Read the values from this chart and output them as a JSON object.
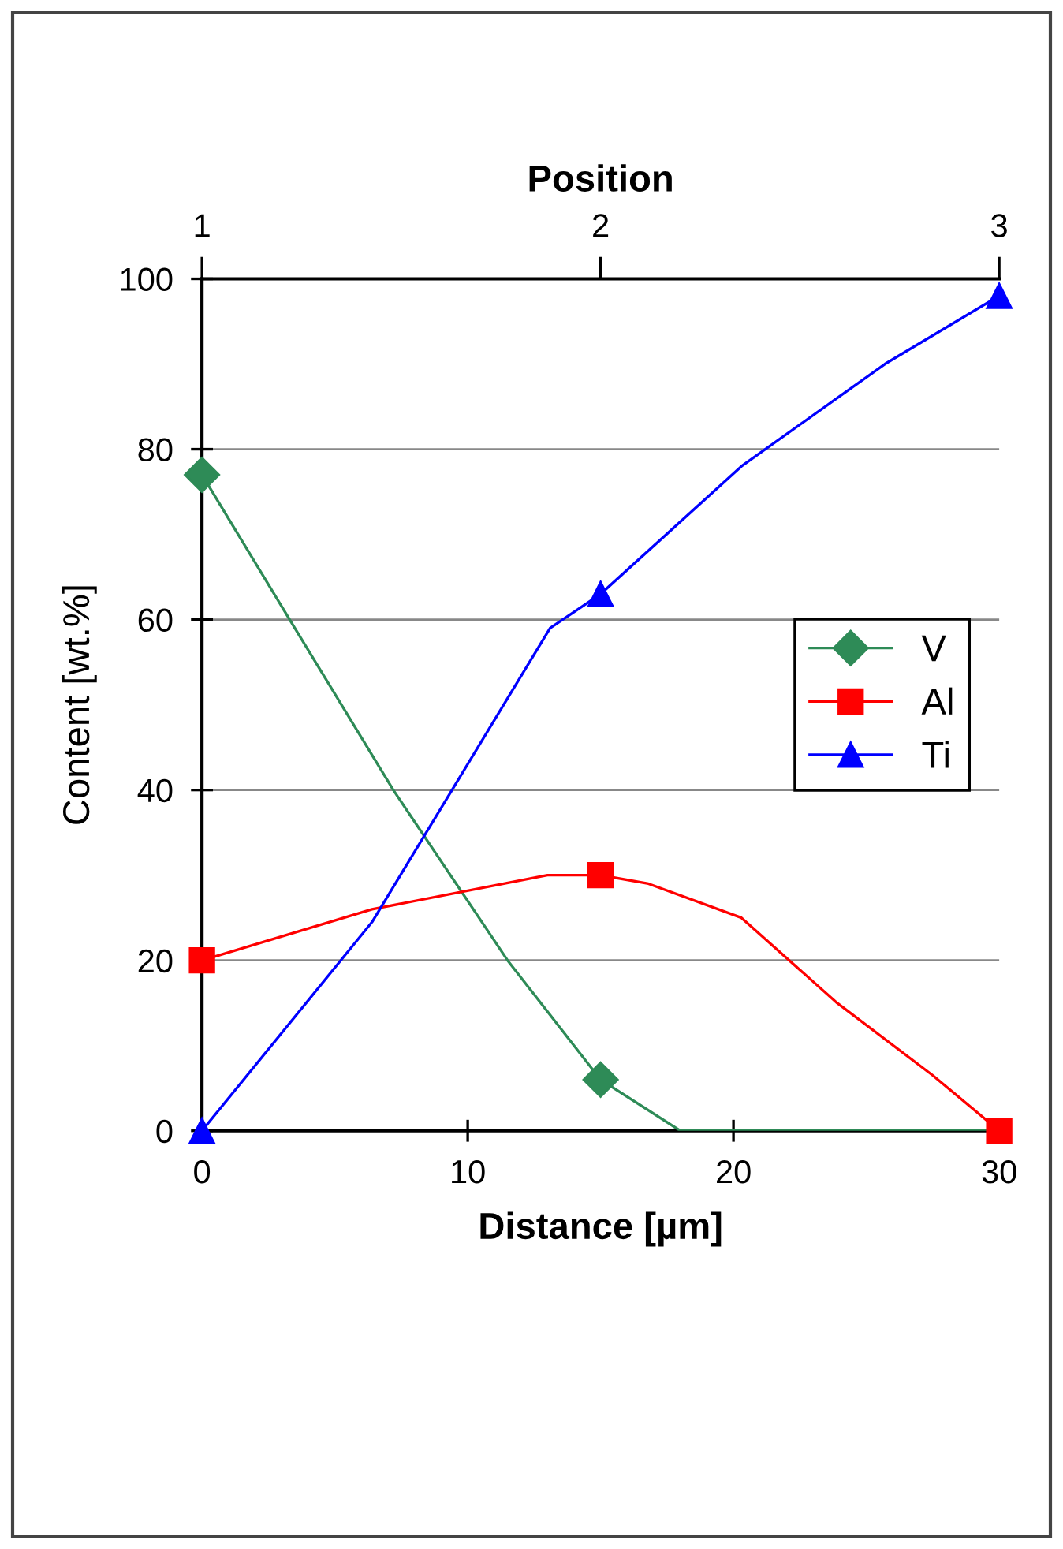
{
  "chart_data": {
    "type": "line",
    "xlabel": "Distance [µm]",
    "ylabel": "Content [wt.%]",
    "x2label": "Position",
    "series": [
      {
        "color": "#2e8b57",
        "x": [
          0,
          3.3,
          7.2,
          11.5,
          15,
          18,
          30
        ],
        "values": [
          77,
          60,
          40,
          20,
          6,
          0,
          0
        ]
      },
      {
        "color": "#ff0000",
        "x": [
          0,
          6.4,
          13,
          15,
          16.8,
          20.3,
          23.9,
          27.5,
          30
        ],
        "values": [
          20,
          26,
          30,
          30,
          29,
          25,
          15,
          6.5,
          0
        ]
      },
      {
        "color": "#0000ff",
        "x": [
          0,
          6.4,
          13.1,
          15,
          20.3,
          25.7,
          30
        ],
        "values": [
          0,
          24.5,
          59,
          63,
          78,
          90,
          98
        ]
      },
      {
        "type": "scatter",
        "name": "V",
        "color": "#2e8b57",
        "x": [
          0,
          15
        ],
        "values": [
          77,
          6
        ],
        "marker": "diamond"
      },
      {
        "type": "scatter",
        "name": "Al",
        "color": "#ff0000",
        "x": [
          0,
          15,
          30
        ],
        "values": [
          20,
          30,
          0
        ],
        "marker": "square"
      },
      {
        "type": "scatter",
        "name": "Ti",
        "color": "#0000ff",
        "x": [
          0,
          15,
          30
        ],
        "values": [
          0,
          63,
          98
        ],
        "marker": "triangle"
      }
    ],
    "xlim": [
      0,
      30
    ],
    "xticks": [
      0,
      10,
      20,
      30
    ],
    "ylim": [
      0,
      100
    ],
    "yticks": [
      0,
      20,
      40,
      60,
      80,
      100
    ],
    "x2lim": [
      1,
      3
    ],
    "x2ticks": [
      1,
      2,
      3
    ],
    "grid": "y",
    "legend": "right",
    "line_style": "solid"
  }
}
